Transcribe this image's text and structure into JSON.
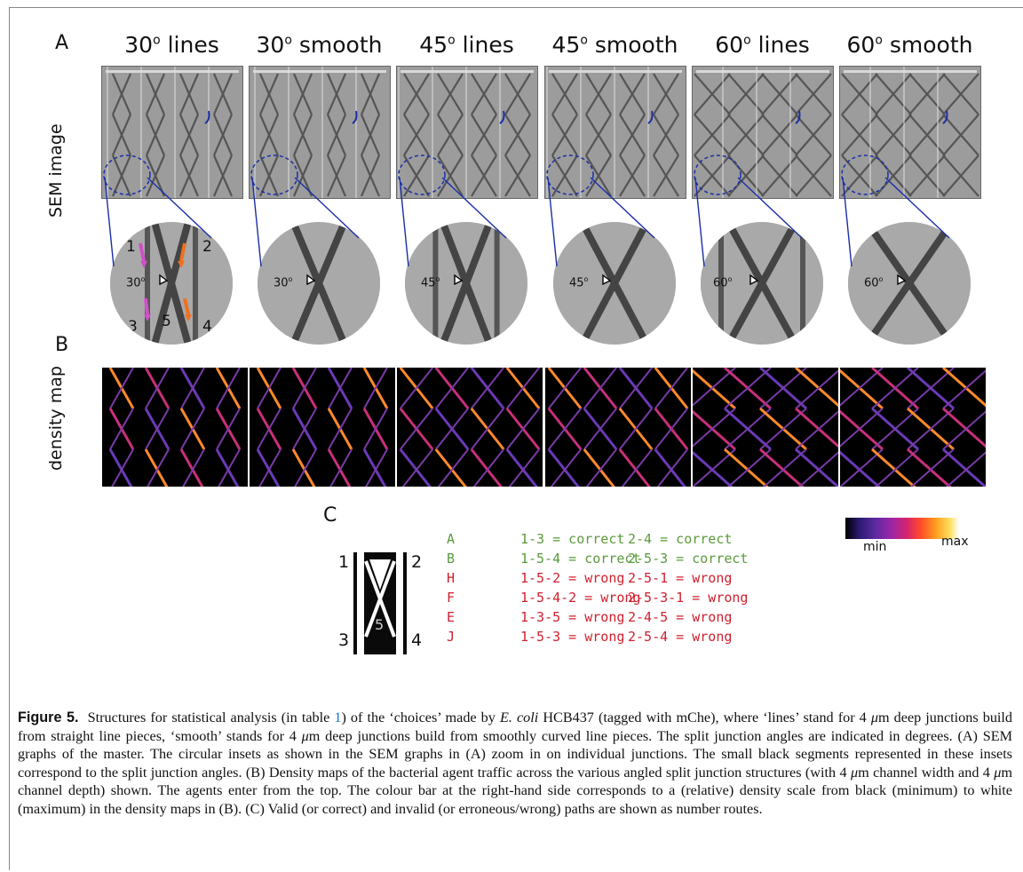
{
  "panel_a": {
    "letter": "A",
    "row_label": "SEM image",
    "columns": [
      {
        "angle": "30",
        "type": "lines"
      },
      {
        "angle": "30",
        "type": "smooth"
      },
      {
        "angle": "45",
        "type": "lines"
      },
      {
        "angle": "45",
        "type": "smooth"
      },
      {
        "angle": "60",
        "type": "lines"
      },
      {
        "angle": "60",
        "type": "smooth"
      }
    ],
    "degree_sign": "o",
    "first_inset_numbers": [
      "1",
      "2",
      "3",
      "5",
      "4"
    ]
  },
  "panel_b": {
    "letter": "B",
    "row_label": "density map",
    "colorbar_min": "min",
    "colorbar_max": "max"
  },
  "panel_c": {
    "letter": "C",
    "junction_numbers": [
      "1",
      "2",
      "3",
      "4",
      "5"
    ],
    "routes": [
      {
        "code": "A",
        "left": "1-3 = correct",
        "right": "2-4 = correct",
        "status": "correct"
      },
      {
        "code": "B",
        "left": "1-5-4 = correct",
        "right": "2-5-3 = correct",
        "status": "correct"
      },
      {
        "code": "H",
        "left": "1-5-2 = wrong",
        "right": "2-5-1 = wrong",
        "status": "wrong"
      },
      {
        "code": "F",
        "left": "1-5-4-2 = wrong",
        "right": "2-5-3-1 = wrong",
        "status": "wrong"
      },
      {
        "code": "E",
        "left": "1-3-5 = wrong",
        "right": "2-4-5 = wrong",
        "status": "wrong"
      },
      {
        "code": "J",
        "left": "1-5-3 = wrong",
        "right": "2-5-4 = wrong",
        "status": "wrong"
      }
    ],
    "colors": {
      "correct": "#5a9a3c",
      "wrong": "#d0202e"
    }
  },
  "caption": {
    "label": "Figure 5.",
    "p1": "Structures for statistical analysis (in table ",
    "table_ref": "1",
    "p2": ") of the ‘choices’ made by ",
    "species": "E. coli",
    "p3": " HCB437 (tagged with mChe), where ‘lines’ stand for 4 ",
    "mu1": "μ",
    "p4": "m deep junctions build from straight line pieces, ‘smooth’ stands for 4 ",
    "mu2": "μ",
    "p5": "m deep junctions build from smoothly curved line pieces. The split junction angles are indicated in degrees. (A) SEM graphs of the master. The circular insets as shown in the SEM graphs in (A) zoom in on individual junctions. The small black segments represented in these insets correspond to the split junction angles. (B) Density maps of the bacterial agent traffic across the various angled split junction structures (with 4 ",
    "mu3": "μ",
    "p6": "m channel width and 4 ",
    "mu4": "μ",
    "p7": "m channel depth) shown. The agents enter from the top. The colour bar at the right-hand side corresponds to a (relative) density scale from black (minimum) to white (maximum) in the density maps in (B). (C) Valid (or correct) and invalid (or erroneous/wrong) paths are shown as number routes."
  }
}
